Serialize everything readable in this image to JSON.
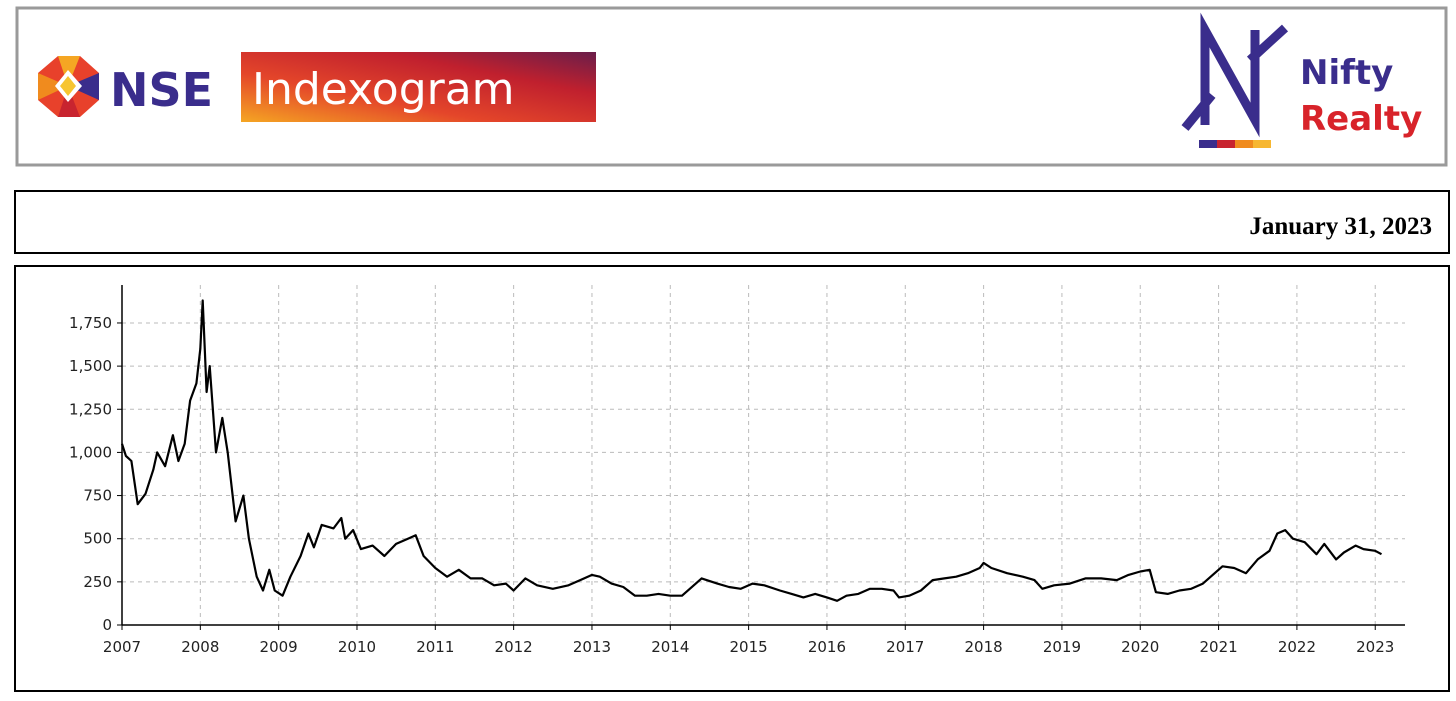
{
  "header": {
    "brand": "NSE",
    "product": "Indexogram",
    "index_line1": "Nifty",
    "index_line2": "Realty"
  },
  "date": "January 31, 2023",
  "chart_data": {
    "type": "line",
    "x": [
      2007.0,
      2007.05,
      2007.12,
      2007.2,
      2007.3,
      2007.4,
      2007.45,
      2007.55,
      2007.65,
      2007.72,
      2007.8,
      2007.87,
      2007.95,
      2008.0,
      2008.03,
      2008.08,
      2008.12,
      2008.2,
      2008.28,
      2008.35,
      2008.45,
      2008.55,
      2008.62,
      2008.72,
      2008.8,
      2008.88,
      2008.95,
      2009.05,
      2009.15,
      2009.28,
      2009.38,
      2009.45,
      2009.55,
      2009.7,
      2009.8,
      2009.85,
      2009.95,
      2010.05,
      2010.2,
      2010.35,
      2010.5,
      2010.65,
      2010.75,
      2010.85,
      2011.0,
      2011.15,
      2011.3,
      2011.45,
      2011.6,
      2011.75,
      2011.9,
      2012.0,
      2012.15,
      2012.3,
      2012.5,
      2012.7,
      2012.85,
      2013.0,
      2013.1,
      2013.25,
      2013.4,
      2013.55,
      2013.7,
      2013.85,
      2014.0,
      2014.15,
      2014.3,
      2014.4,
      2014.6,
      2014.75,
      2014.9,
      2015.05,
      2015.2,
      2015.4,
      2015.55,
      2015.7,
      2015.85,
      2016.0,
      2016.13,
      2016.25,
      2016.4,
      2016.55,
      2016.7,
      2016.85,
      2016.92,
      2017.05,
      2017.2,
      2017.35,
      2017.5,
      2017.65,
      2017.8,
      2017.95,
      2018.0,
      2018.1,
      2018.3,
      2018.5,
      2018.65,
      2018.75,
      2018.9,
      2019.1,
      2019.3,
      2019.5,
      2019.7,
      2019.85,
      2020.0,
      2020.12,
      2020.2,
      2020.35,
      2020.5,
      2020.65,
      2020.8,
      2020.9,
      2021.05,
      2021.2,
      2021.35,
      2021.5,
      2021.65,
      2021.75,
      2021.85,
      2021.95,
      2022.1,
      2022.25,
      2022.35,
      2022.5,
      2022.6,
      2022.75,
      2022.85,
      2023.0,
      2023.08
    ],
    "series": [
      {
        "color": "#000000",
        "values": [
          1050,
          980,
          950,
          700,
          760,
          900,
          1000,
          920,
          1100,
          950,
          1050,
          1300,
          1400,
          1600,
          1880,
          1350,
          1500,
          1000,
          1200,
          1000,
          600,
          750,
          500,
          280,
          200,
          320,
          200,
          170,
          280,
          400,
          530,
          450,
          580,
          560,
          620,
          500,
          550,
          440,
          460,
          400,
          470,
          500,
          520,
          400,
          330,
          280,
          320,
          270,
          270,
          230,
          240,
          200,
          270,
          230,
          210,
          230,
          260,
          290,
          280,
          240,
          220,
          170,
          170,
          180,
          170,
          170,
          230,
          270,
          240,
          220,
          210,
          240,
          230,
          200,
          180,
          160,
          180,
          160,
          140,
          170,
          180,
          210,
          210,
          200,
          160,
          170,
          200,
          260,
          270,
          280,
          300,
          330,
          360,
          330,
          300,
          280,
          260,
          210,
          230,
          240,
          270,
          270,
          260,
          290,
          310,
          320,
          190,
          180,
          200,
          210,
          240,
          280,
          340,
          330,
          300,
          380,
          430,
          530,
          550,
          500,
          480,
          410,
          470,
          380,
          420,
          460,
          440,
          430,
          410
        ]
      }
    ],
    "xlim": [
      2007,
      2023.38
    ],
    "xticks": [
      2007,
      2008,
      2009,
      2010,
      2011,
      2012,
      2013,
      2014,
      2015,
      2016,
      2017,
      2018,
      2019,
      2020,
      2021,
      2022,
      2023
    ],
    "ylim": [
      0,
      1970
    ],
    "yticks": [
      0,
      250,
      500,
      750,
      {
        "value": 1000,
        "label": "1,000"
      },
      {
        "value": 1250,
        "label": "1,250"
      },
      {
        "value": 1500,
        "label": "1,500"
      },
      {
        "value": 1750,
        "label": "1,750"
      }
    ],
    "grid": true
  }
}
